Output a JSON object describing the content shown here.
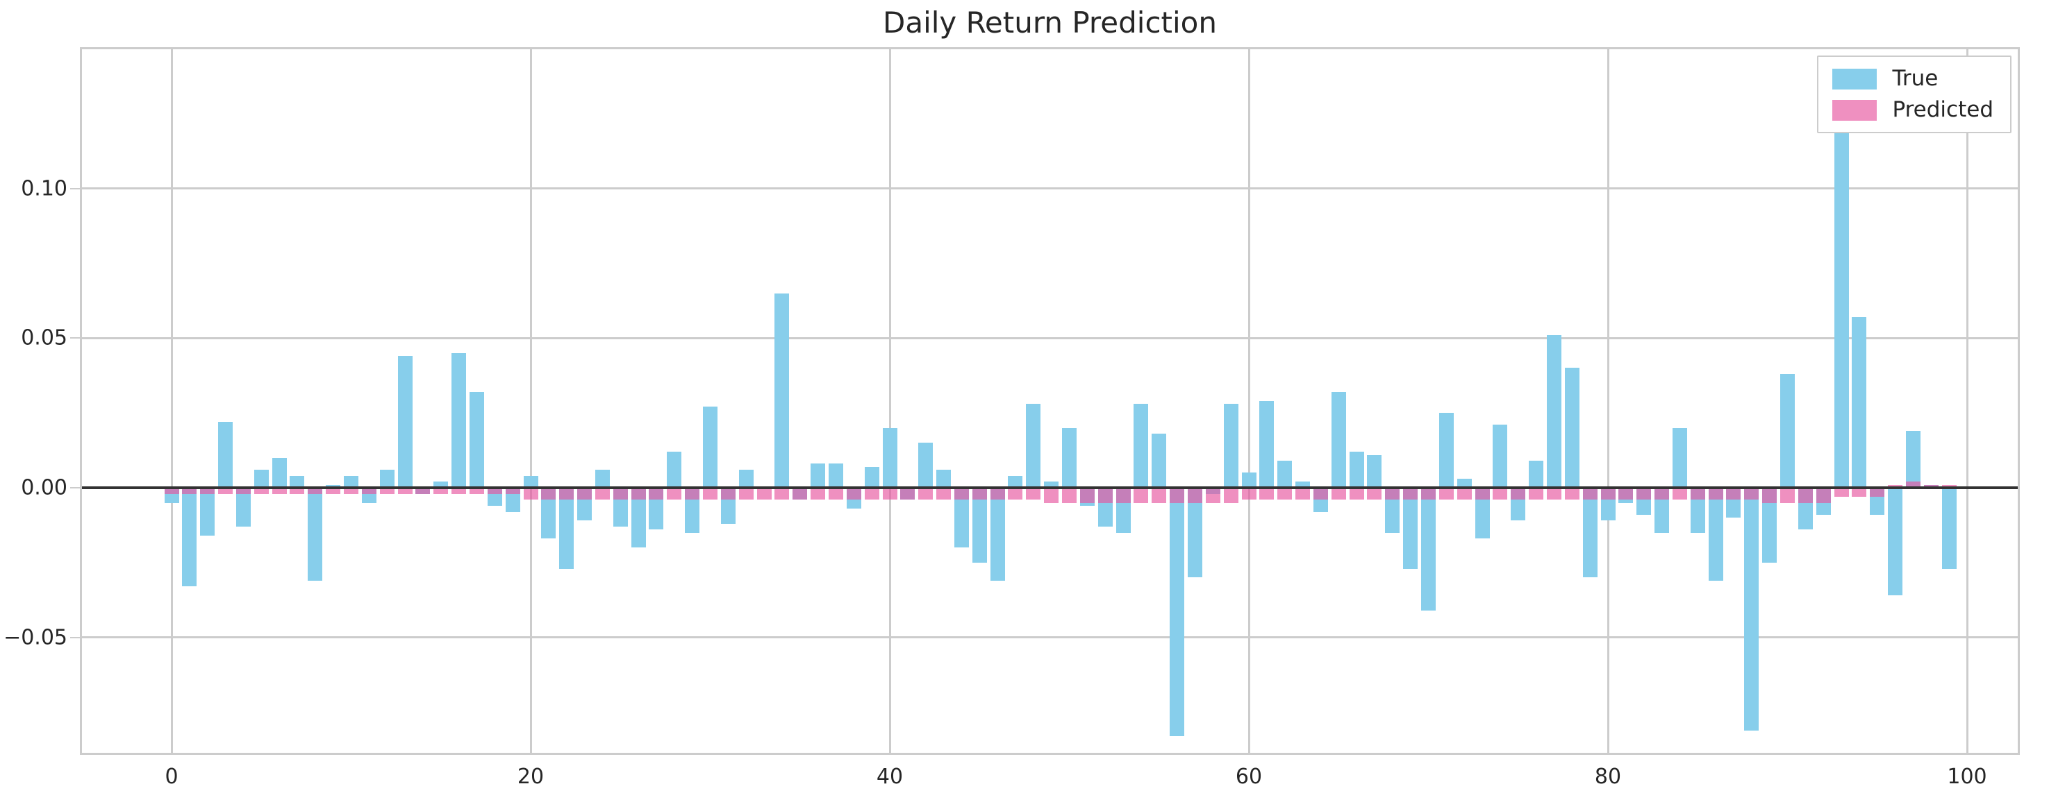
{
  "title": "Daily Return Prediction",
  "legend": {
    "position": "upper right",
    "items": [
      {
        "label": "True",
        "color": "#87CEEB"
      },
      {
        "label": "Predicted",
        "color": "rgba(231,84,158,0.65)"
      }
    ]
  },
  "axes": {
    "x_tick_labels": [
      "0",
      "20",
      "40",
      "60",
      "80",
      "100"
    ],
    "x_tick_values": [
      0,
      20,
      40,
      60,
      80,
      100
    ],
    "y_tick_labels": [
      "0.10",
      "0.05",
      "0.00",
      "−0.05"
    ],
    "y_tick_values": [
      0.1,
      0.05,
      0.0,
      -0.05
    ],
    "grid": true,
    "grid_color": "#cccccc",
    "zero_line_color": "#323232",
    "spine_color": "#cccccc"
  },
  "chart_data": {
    "type": "bar",
    "title": "Daily Return Prediction",
    "xlabel": "",
    "ylabel": "",
    "x": "index 0..99",
    "xlim": [
      -5,
      103
    ],
    "ylim": [
      -0.089,
      0.147
    ],
    "legend_position": "upper right",
    "series": [
      {
        "name": "True",
        "color": "#87CEEB",
        "values": [
          -0.005,
          -0.033,
          -0.016,
          0.022,
          -0.013,
          0.006,
          0.01,
          0.004,
          -0.031,
          0.001,
          0.004,
          -0.005,
          0.006,
          0.044,
          -0.002,
          0.002,
          0.045,
          0.032,
          -0.006,
          -0.008,
          0.004,
          -0.017,
          -0.027,
          -0.011,
          0.006,
          -0.013,
          -0.02,
          -0.014,
          0.012,
          -0.015,
          0.027,
          -0.012,
          0.006,
          0.0,
          0.065,
          -0.004,
          0.008,
          0.008,
          -0.007,
          0.007,
          0.02,
          -0.004,
          0.015,
          0.006,
          -0.02,
          -0.025,
          -0.031,
          0.004,
          0.028,
          0.002,
          0.02,
          -0.006,
          -0.013,
          -0.015,
          0.028,
          0.018,
          -0.083,
          -0.03,
          -0.002,
          0.028,
          0.005,
          0.029,
          0.009,
          0.002,
          -0.008,
          0.032,
          0.012,
          0.011,
          -0.015,
          -0.027,
          -0.041,
          0.025,
          0.003,
          -0.017,
          0.021,
          -0.011,
          0.009,
          0.051,
          0.04,
          -0.03,
          -0.011,
          -0.005,
          -0.009,
          -0.015,
          0.02,
          -0.015,
          -0.031,
          -0.01,
          -0.081,
          -0.025,
          0.038,
          -0.014,
          -0.009,
          0.135,
          0.057,
          -0.009,
          -0.036,
          0.019,
          0.001,
          -0.027
        ]
      },
      {
        "name": "Predicted",
        "color": "rgba(231,84,158,0.65)",
        "values": [
          -0.002,
          -0.002,
          -0.002,
          -0.002,
          -0.002,
          -0.002,
          -0.002,
          -0.002,
          -0.002,
          -0.002,
          -0.002,
          -0.002,
          -0.002,
          -0.002,
          -0.002,
          -0.002,
          -0.002,
          -0.002,
          -0.002,
          -0.002,
          -0.004,
          -0.004,
          -0.004,
          -0.004,
          -0.004,
          -0.004,
          -0.004,
          -0.004,
          -0.004,
          -0.004,
          -0.004,
          -0.004,
          -0.004,
          -0.004,
          -0.004,
          -0.004,
          -0.004,
          -0.004,
          -0.004,
          -0.004,
          -0.004,
          -0.004,
          -0.004,
          -0.004,
          -0.004,
          -0.004,
          -0.004,
          -0.004,
          -0.004,
          -0.005,
          -0.005,
          -0.005,
          -0.005,
          -0.005,
          -0.005,
          -0.005,
          -0.005,
          -0.005,
          -0.005,
          -0.005,
          -0.004,
          -0.004,
          -0.004,
          -0.004,
          -0.004,
          -0.004,
          -0.004,
          -0.004,
          -0.004,
          -0.004,
          -0.004,
          -0.004,
          -0.004,
          -0.004,
          -0.004,
          -0.004,
          -0.004,
          -0.004,
          -0.004,
          -0.004,
          -0.004,
          -0.004,
          -0.004,
          -0.004,
          -0.004,
          -0.004,
          -0.004,
          -0.004,
          -0.004,
          -0.005,
          -0.005,
          -0.005,
          -0.005,
          -0.003,
          -0.003,
          -0.003,
          0.001,
          0.002,
          0.001,
          0.001
        ]
      }
    ]
  }
}
